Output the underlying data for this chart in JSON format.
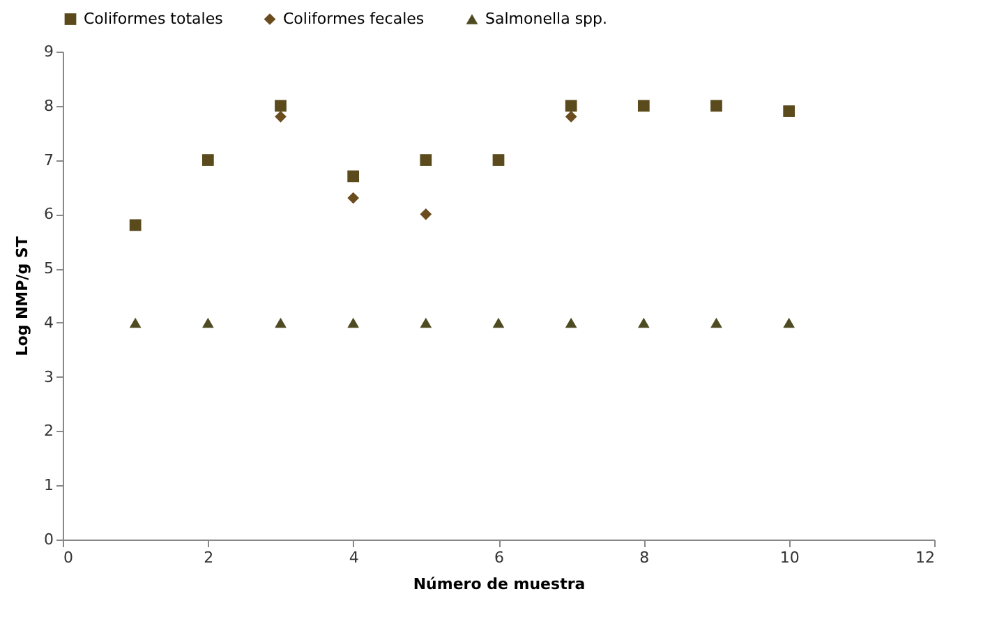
{
  "chart_data": {
    "type": "scatter",
    "xlabel": "Número de muestra",
    "ylabel": "Log NMP/g ST",
    "x": [
      1,
      2,
      3,
      4,
      5,
      6,
      7,
      8,
      9,
      10
    ],
    "series": [
      {
        "name": "Coliformes totales",
        "color": "#5a4a1c",
        "marker": "square",
        "values": [
          5.8,
          7,
          8,
          6.7,
          7,
          7,
          8,
          8,
          8,
          7.9
        ]
      },
      {
        "name": "Coliformes fecales",
        "color": "#6a4c1e",
        "marker": "diamond",
        "values": [
          null,
          null,
          7.8,
          6.3,
          6.0,
          null,
          7.8,
          null,
          null,
          null
        ]
      },
      {
        "name": "Salmonella spp.",
        "color": "#4e4a22",
        "marker": "triangle",
        "values": [
          4,
          4,
          4,
          4,
          4,
          4,
          4,
          4,
          4,
          4
        ]
      }
    ],
    "xlim": [
      0,
      12
    ],
    "xticks": [
      0,
      2,
      4,
      6,
      8,
      10,
      12
    ],
    "ylim": [
      0,
      9
    ],
    "yticks": [
      0,
      1,
      2,
      3,
      4,
      5,
      6,
      7,
      8,
      9
    ],
    "grid": false,
    "legend": "top"
  }
}
